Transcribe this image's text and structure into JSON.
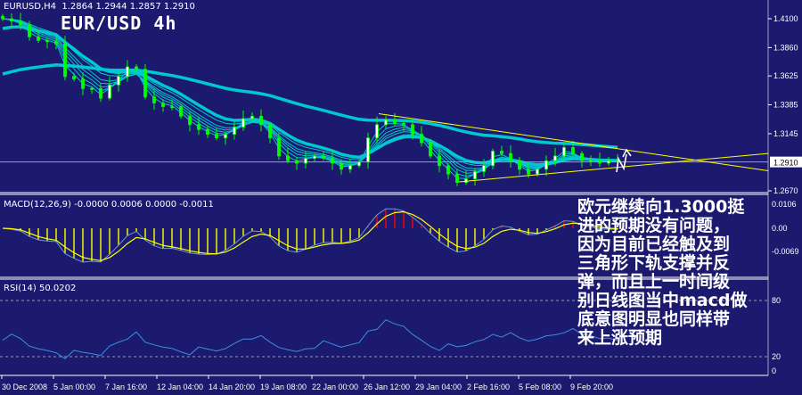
{
  "header": {
    "symbol_info": "EURUSD,H4  1.2864 1.2944 1.2857 1.2910",
    "overlay_title": "EUR/USD 4h"
  },
  "annotation": {
    "lines": [
      "欧元继续向1.3000挺",
      "进的预期没有问题，",
      "因为目前已经触及到",
      "三角形下轨支撑并反",
      "弹，而且上一时间级",
      "别日线图当中macd做",
      "底意图明显也同样带",
      "来上涨预期"
    ]
  },
  "colors": {
    "background": "#1b1a6e",
    "candle": "#00ff00",
    "moving_average": "#00c8d0",
    "trendline": "#ffff00",
    "macd_positive": "#ff0000",
    "macd_negative": "#ffff00",
    "macd_line": "#6a9bd0",
    "rsi_line": "#3d8fe0"
  },
  "chart_data": [
    {
      "type": "candlestick",
      "symbol": "EURUSD",
      "timeframe": "H4",
      "close": [
        1.41,
        1.408,
        1.405,
        1.395,
        1.392,
        1.391,
        1.389,
        1.362,
        1.36,
        1.352,
        1.352,
        1.344,
        1.355,
        1.362,
        1.37,
        1.368,
        1.345,
        1.34,
        1.337,
        1.337,
        1.329,
        1.322,
        1.318,
        1.314,
        1.311,
        1.314,
        1.32,
        1.327,
        1.329,
        1.322,
        1.311,
        1.296,
        1.292,
        1.29,
        1.294,
        1.296,
        1.294,
        1.29,
        1.285,
        1.288,
        1.291,
        1.311,
        1.322,
        1.326,
        1.323,
        1.322,
        1.314,
        1.307,
        1.296,
        1.288,
        1.281,
        1.274,
        1.277,
        1.283,
        1.288,
        1.3,
        1.298,
        1.292,
        1.285,
        1.281,
        1.285,
        1.292,
        1.296,
        1.303,
        1.298,
        1.292,
        1.292,
        1.29,
        1.292,
        1.291
      ],
      "price_ticks": [
        "1.4100",
        "1.3860",
        "1.3625",
        "1.3385",
        "1.3145",
        "1.2670"
      ],
      "price_tick_values": [
        1.41,
        1.386,
        1.3625,
        1.3385,
        1.3145,
        1.267
      ],
      "current_price": "1.2910",
      "ylim": [
        1.267,
        1.41
      ],
      "x_ticks": [
        "30 Dec 2008",
        "5 Jan 00:00",
        "7 Jan 16:00",
        "12 Jan 04:00",
        "14 Jan 20:00",
        "19 Jan 08:00",
        "22 Jan 00:00",
        "26 Jan 12:00",
        "29 Jan 04:00",
        "2 Feb 16:00",
        "5 Feb 08:00",
        "9 Feb 20:00"
      ],
      "trendlines": [
        {
          "name": "triangle-upper",
          "start_price": 1.3311,
          "end_price": 1.2837
        },
        {
          "name": "triangle-lower",
          "start_price": 1.2744,
          "end_price": 1.2981
        }
      ]
    },
    {
      "type": "bar",
      "title": "MACD(12,26,9) -0.0000 0.0006 0.0000 -0.0011",
      "y_ticks": [
        "0.0106",
        "0.00",
        "-0.0069"
      ]
    },
    {
      "type": "line",
      "title": "RSI(14) 50.0202",
      "y_ticks": [
        "80",
        "20",
        "0"
      ],
      "levels": [
        80,
        20
      ],
      "ylim": [
        0,
        100
      ]
    }
  ]
}
